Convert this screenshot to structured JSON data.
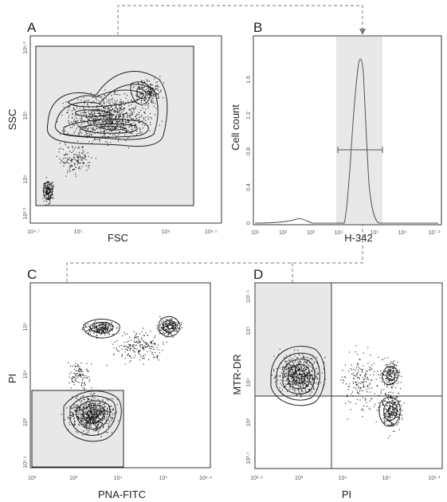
{
  "panels": {
    "A": {
      "letter": "A",
      "xlabel": "FSC",
      "ylabel": "SSC",
      "xticks": [
        "10⁴·⁷",
        "10⁵",
        "10⁶",
        "10⁶·⁵"
      ],
      "yticks": [
        "10⁶·¹",
        "10⁵",
        "10⁴",
        "10³·³"
      ]
    },
    "B": {
      "letter": "B",
      "xlabel": "H-342",
      "ylabel": "Cell count",
      "xticks": [
        "10¹",
        "10²",
        "10³",
        "10⁴",
        "10⁵",
        "10⁶",
        "10⁷·²"
      ],
      "yticks": [
        "1.6",
        "1.2",
        "0.8",
        "0.4",
        "0"
      ]
    },
    "C": {
      "letter": "C",
      "xlabel": "PNA-FITC",
      "ylabel": "PI",
      "xticks": [
        "10²",
        "10³",
        "10⁴",
        "10⁵",
        "10⁶·⁴"
      ],
      "yticks": [
        "10⁵",
        "10⁴",
        "10³",
        "10¹·⁹"
      ]
    },
    "D": {
      "letter": "D",
      "xlabel": "PI",
      "ylabel": "MTR-DR",
      "xticks": [
        "10¹·⁹",
        "10³",
        "10⁴",
        "10⁵",
        "10⁶·¹"
      ],
      "yticks": [
        "10⁵·⁵",
        "10⁵",
        "10⁴",
        "10³",
        "10²·⁷"
      ]
    }
  },
  "colors": {
    "gate": "#e8e8e8",
    "line": "#222222",
    "arrow": "#7a7a7a"
  }
}
